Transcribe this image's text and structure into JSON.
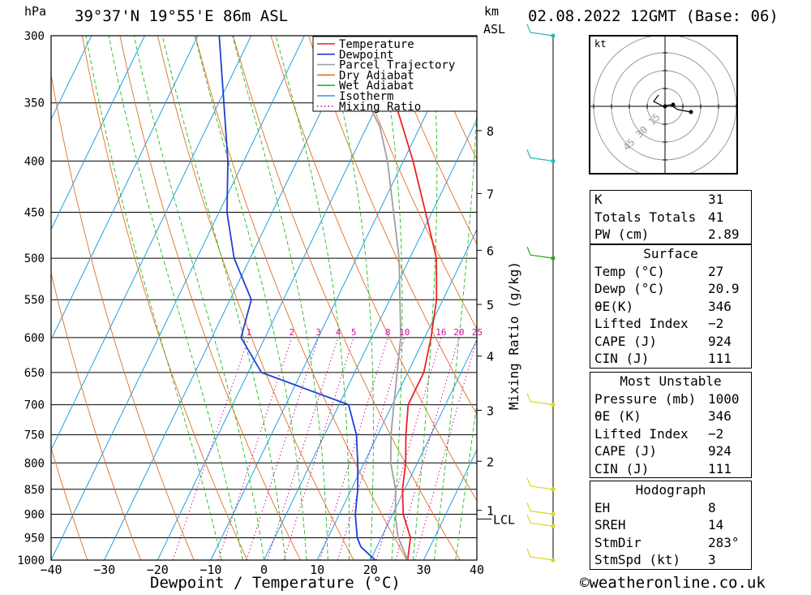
{
  "header": {
    "location": "39°37'N  19°55'E  86m  ASL",
    "datetime": "02.08.2022  12GMT  (Base: 06)",
    "pressure_unit": "hPa",
    "height_unit": "km",
    "height_ref": "ASL"
  },
  "x_axis_label": "Dewpoint / Temperature (°C)",
  "mixing_ratio_axis_label": "Mixing Ratio (g/kg)",
  "copyright": "©weatheronline.co.uk",
  "colors": {
    "temperature": "#ee2222",
    "dewpoint": "#1f3fd8",
    "parcel": "#a0a0a0",
    "dry_adiabat": "#e07020",
    "wet_adiabat": "#22bb22",
    "isotherm": "#22a0e0",
    "mixing_ratio": "#cc1199",
    "wind_upper": "#2bb8b8",
    "wind_mid": "#22aa22",
    "wind_low": "#d8d820"
  },
  "legend": [
    "Temperature",
    "Dewpoint",
    "Parcel Trajectory",
    "Dry Adiabat",
    "Wet Adiabat",
    "Isotherm",
    "Mixing Ratio"
  ],
  "chart_data": {
    "type": "line",
    "chart_kind": "Skew-T log-P sounding",
    "pressure_levels": [
      1000,
      950,
      900,
      850,
      800,
      750,
      700,
      650,
      600,
      550,
      500,
      450,
      400,
      350,
      300
    ],
    "pressure_tick_labels": [
      "1000",
      "950",
      "900",
      "850",
      "800",
      "750",
      "700",
      "650",
      "600",
      "550",
      "500",
      "450",
      "400",
      "350",
      "300"
    ],
    "x_ticks": [
      -40,
      -30,
      -20,
      -10,
      0,
      10,
      20,
      30,
      40
    ],
    "x_tick_labels": [
      "−40",
      "−30",
      "−20",
      "−10",
      "0",
      "10",
      "20",
      "30",
      "40"
    ],
    "xlim": [
      -40,
      40
    ],
    "ylim": [
      1000,
      300
    ],
    "y_scale": "log",
    "skew_degrees_per_decade": 91,
    "height_ticks_km": [
      {
        "label": "1",
        "p": 892
      },
      {
        "label": "2",
        "p": 797
      },
      {
        "label": "3",
        "p": 709
      },
      {
        "label": "4",
        "p": 626
      },
      {
        "label": "5",
        "p": 556
      },
      {
        "label": "6",
        "p": 491
      },
      {
        "label": "7",
        "p": 431
      },
      {
        "label": "8",
        "p": 373
      }
    ],
    "lcl": {
      "label": "LCL",
      "p": 910
    },
    "mixing_ratio_labels": [
      "1",
      "2",
      "3",
      "4",
      "5",
      "8",
      "10",
      "16",
      "20",
      "25"
    ],
    "mixing_ratio_values": [
      1,
      2,
      3,
      4,
      5,
      8,
      10,
      16,
      20,
      25
    ],
    "mixing_ratio_label_p": 597,
    "series": [
      {
        "name": "Temperature",
        "p": [
          1000,
          950,
          900,
          850,
          800,
          750,
          700,
          650,
          600,
          550,
          500,
          450,
          400,
          350,
          300
        ],
        "t": [
          27.0,
          25.5,
          22.0,
          19.6,
          17.8,
          15.3,
          13.0,
          13.0,
          11.2,
          8.8,
          5.0,
          -1.2,
          -8.2,
          -16.8,
          -26.8
        ]
      },
      {
        "name": "Dewpoint",
        "p": [
          1000,
          970,
          950,
          900,
          850,
          800,
          750,
          700,
          650,
          600,
          550,
          500,
          450,
          400,
          300
        ],
        "t": [
          20.9,
          17.0,
          15.5,
          13.0,
          11.2,
          8.8,
          6.0,
          1.8,
          -17.5,
          -24.5,
          -26.0,
          -33.0,
          -38.5,
          -43.0,
          -56.0
        ]
      },
      {
        "name": "Parcel Trajectory",
        "p": [
          1000,
          950,
          910,
          850,
          800,
          750,
          700,
          600,
          500,
          400,
          370,
          300
        ],
        "t": [
          27.0,
          23.2,
          21.0,
          18.3,
          15.0,
          12.5,
          10.3,
          5.5,
          -2.0,
          -13.0,
          -17.5,
          -34.0
        ]
      }
    ],
    "wind_markers": [
      {
        "p": 300,
        "color": "wind_upper"
      },
      {
        "p": 400,
        "color": "wind_upper"
      },
      {
        "p": 500,
        "color": "wind_mid"
      },
      {
        "p": 700,
        "color": "wind_low"
      },
      {
        "p": 850,
        "color": "wind_low"
      },
      {
        "p": 900,
        "color": "wind_low"
      },
      {
        "p": 925,
        "color": "wind_low"
      },
      {
        "p": 1000,
        "color": "wind_low"
      }
    ],
    "hodograph": {
      "unit_label": "kt",
      "ring_labels": [
        "15",
        "30",
        "45"
      ]
    }
  },
  "indices_table": {
    "rows": [
      {
        "label": "K",
        "value": "31"
      },
      {
        "label": "Totals Totals",
        "value": "41"
      },
      {
        "label": "PW (cm)",
        "value": "2.89"
      }
    ]
  },
  "surface_table": {
    "title": "Surface",
    "rows": [
      {
        "label": "Temp (°C)",
        "value": "27"
      },
      {
        "label": "Dewp (°C)",
        "value": "20.9"
      },
      {
        "label": "θE(K)",
        "value": "346"
      },
      {
        "label": "Lifted Index",
        "value": "−2"
      },
      {
        "label": "CAPE (J)",
        "value": "924"
      },
      {
        "label": "CIN (J)",
        "value": "111"
      }
    ]
  },
  "unstable_table": {
    "title": "Most Unstable",
    "rows": [
      {
        "label": "Pressure (mb)",
        "value": "1000"
      },
      {
        "label": "θE (K)",
        "value": "346"
      },
      {
        "label": "Lifted Index",
        "value": "−2"
      },
      {
        "label": "CAPE (J)",
        "value": "924"
      },
      {
        "label": "CIN (J)",
        "value": "111"
      }
    ]
  },
  "hodograph_table": {
    "title": "Hodograph",
    "rows": [
      {
        "label": "EH",
        "value": "8"
      },
      {
        "label": "SREH",
        "value": "14"
      },
      {
        "label": "StmDir",
        "value": "283°"
      },
      {
        "label": "StmSpd (kt)",
        "value": "3"
      }
    ]
  }
}
